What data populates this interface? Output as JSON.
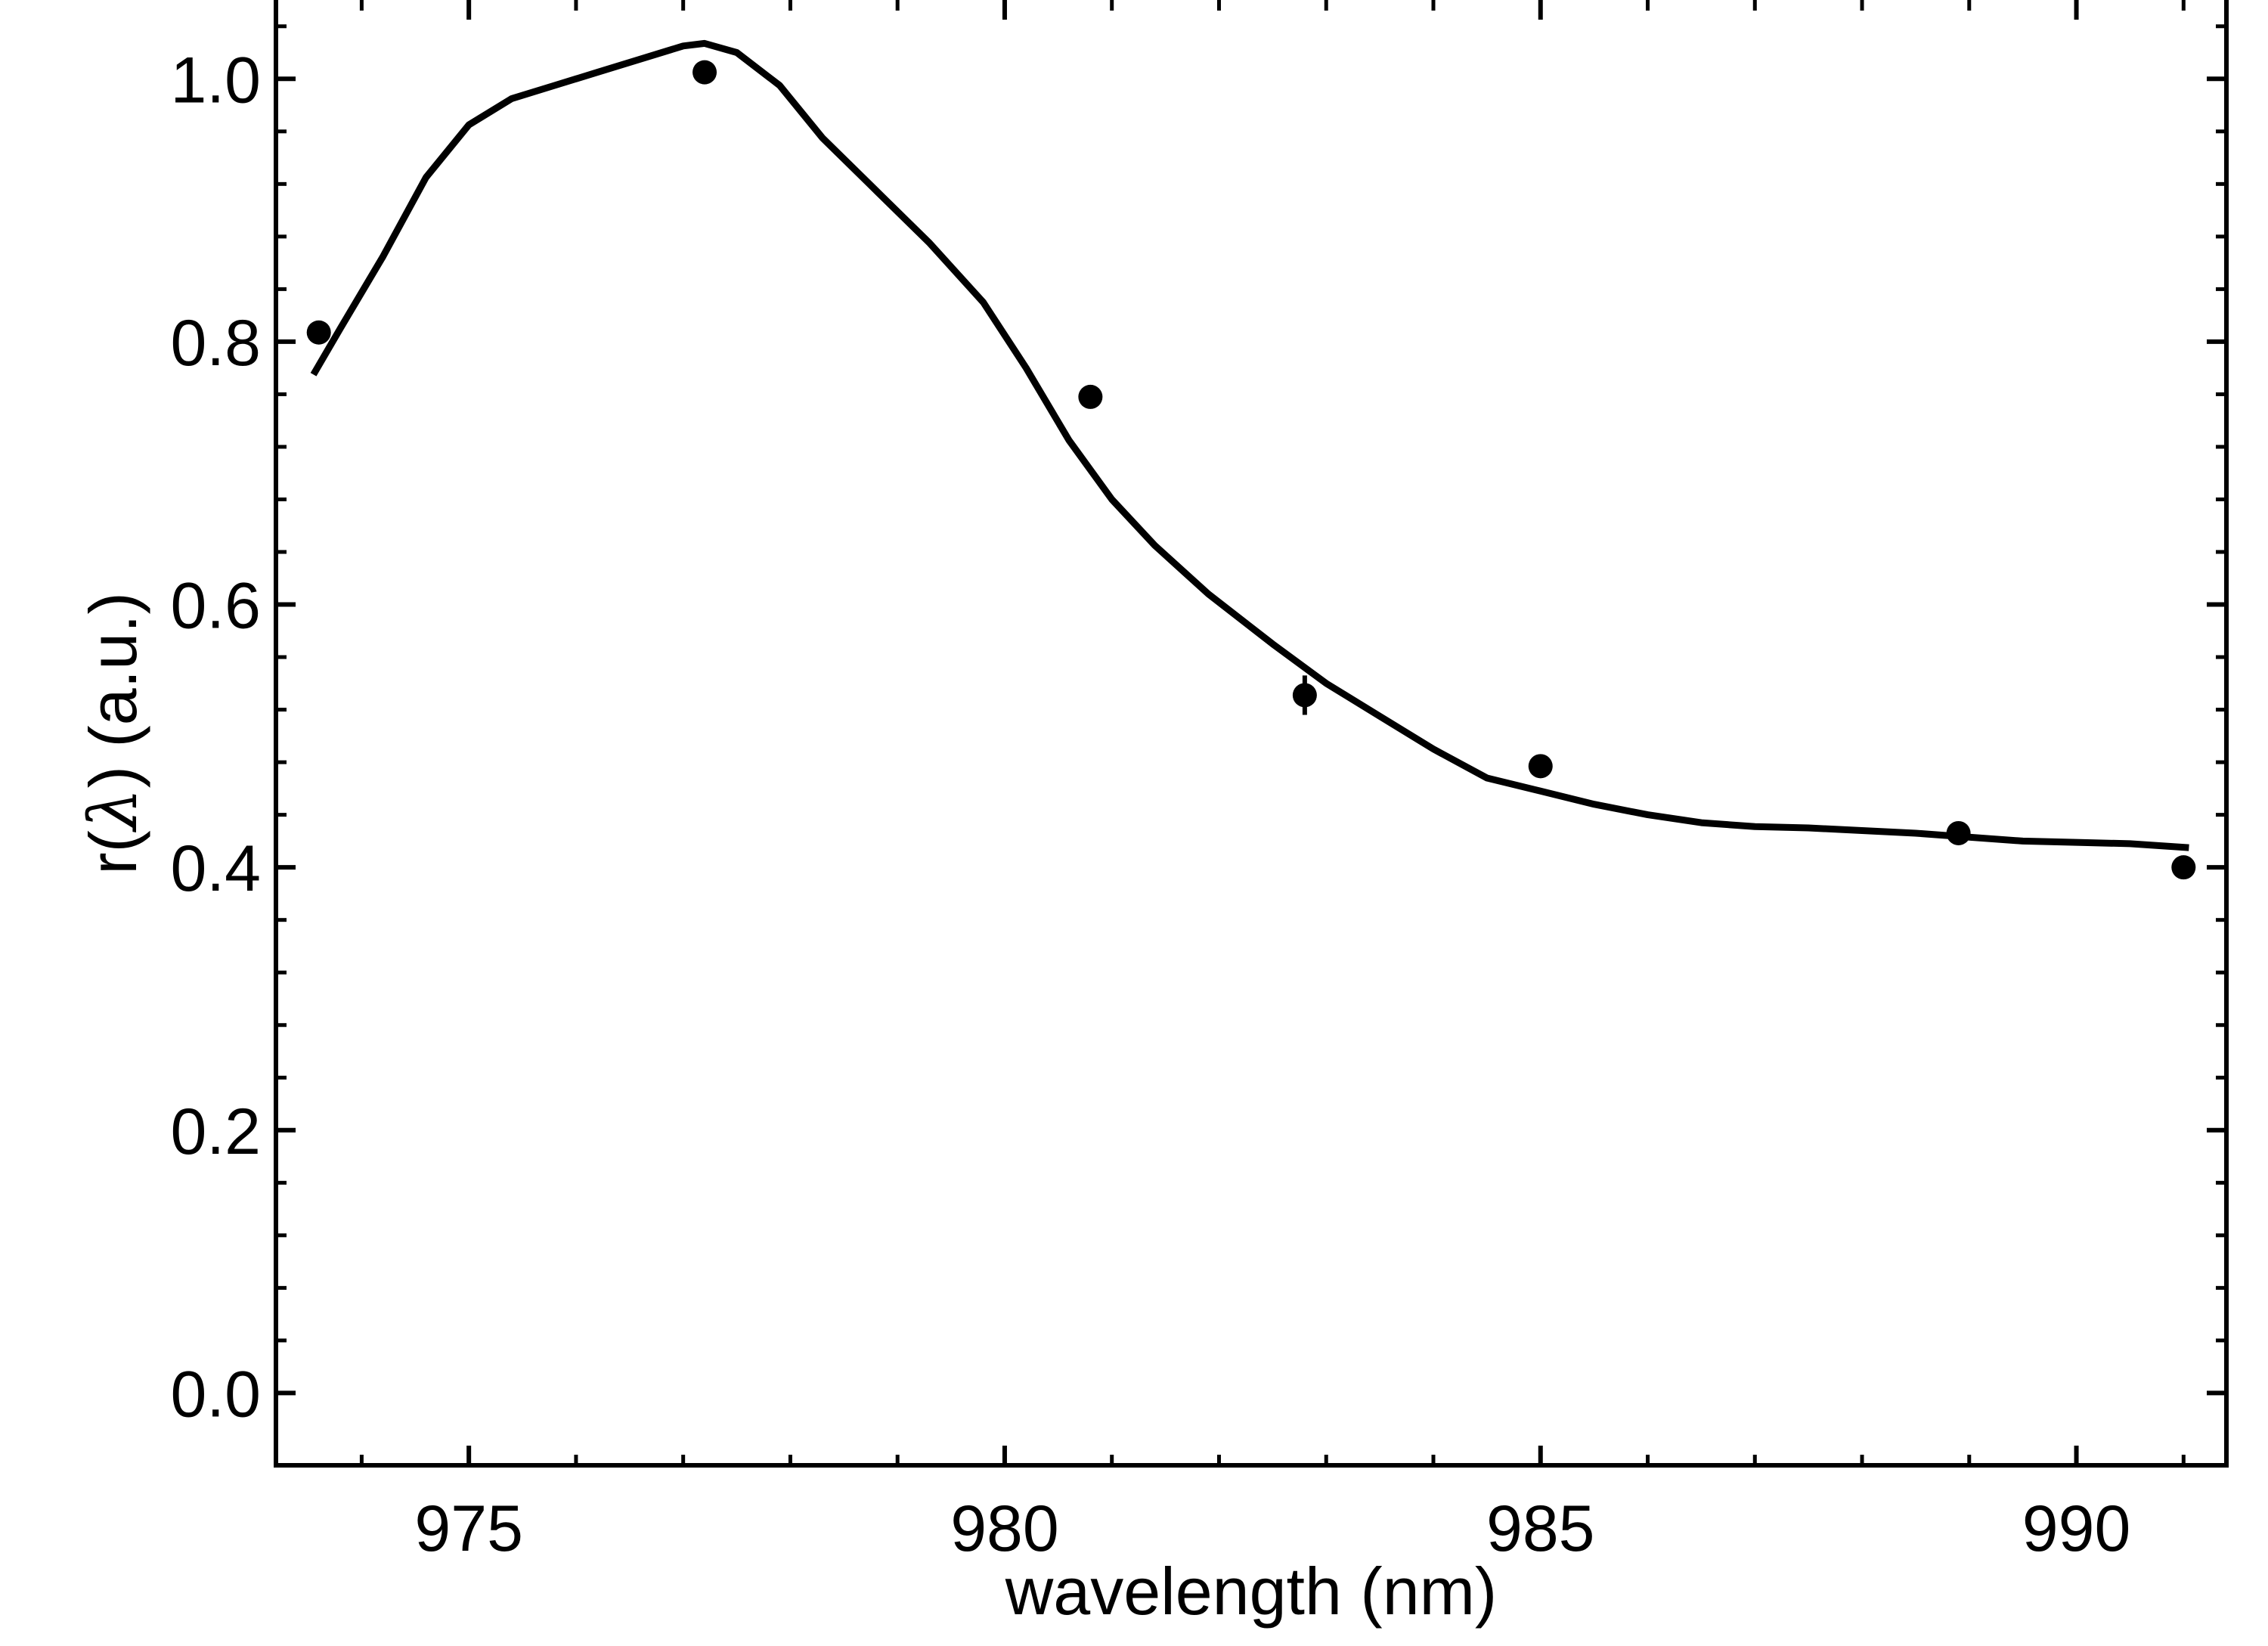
{
  "chart_data": {
    "type": "scatter",
    "xlabel": "wavelength (nm)",
    "ylabel_prefix": "r(",
    "ylabel_symbol": "λ",
    "ylabel_suffix": ") (a.u.)",
    "xlim": [
      973.2,
      991.4
    ],
    "ylim": [
      -0.055,
      1.06
    ],
    "x_ticks": [
      975,
      980,
      985,
      990
    ],
    "x_tick_labels": [
      "975",
      "980",
      "985",
      "990"
    ],
    "x_minor_step": 1,
    "y_ticks": [
      0.0,
      0.2,
      0.4,
      0.6,
      0.8,
      1.0
    ],
    "y_tick_labels": [
      "0.0",
      "0.2",
      "0.4",
      "0.6",
      "0.8",
      "1.0"
    ],
    "y_minor_step": 0.04,
    "grid": false,
    "series": [
      {
        "kind": "points",
        "x": [
          973.6,
          977.2,
          980.8,
          982.8,
          985.0,
          988.9,
          991.0
        ],
        "y": [
          0.807,
          1.005,
          0.758,
          0.531,
          0.477,
          0.426,
          0.4
        ],
        "yerr": [
          0.004,
          0.009,
          0.005,
          0.015,
          0.005,
          0.005,
          0.005
        ]
      },
      {
        "kind": "line",
        "x": [
          973.55,
          973.8,
          974.2,
          974.6,
          975.0,
          975.4,
          975.8,
          976.2,
          976.6,
          977.0,
          977.2,
          977.5,
          977.9,
          978.3,
          978.8,
          979.3,
          979.8,
          980.2,
          980.6,
          981.0,
          981.4,
          981.9,
          982.5,
          983.0,
          983.5,
          984.0,
          984.5,
          985.0,
          985.5,
          986.0,
          986.5,
          987.0,
          987.5,
          988.0,
          988.5,
          989.0,
          989.5,
          990.0,
          990.5,
          991.05
        ],
        "y": [
          0.775,
          0.81,
          0.865,
          0.925,
          0.965,
          0.985,
          0.995,
          1.005,
          1.015,
          1.025,
          1.027,
          1.02,
          0.995,
          0.955,
          0.915,
          0.875,
          0.83,
          0.78,
          0.725,
          0.68,
          0.645,
          0.608,
          0.57,
          0.54,
          0.515,
          0.49,
          0.468,
          0.458,
          0.448,
          0.44,
          0.434,
          0.431,
          0.43,
          0.428,
          0.426,
          0.423,
          0.42,
          0.419,
          0.418,
          0.415
        ]
      }
    ]
  }
}
